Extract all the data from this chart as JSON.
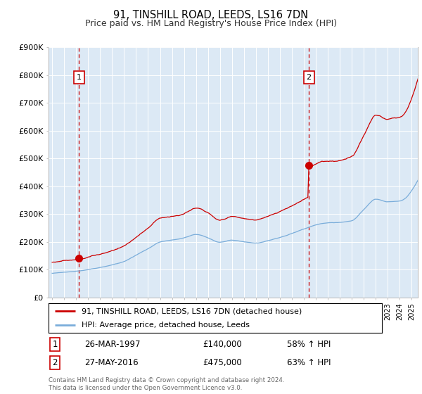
{
  "title": "91, TINSHILL ROAD, LEEDS, LS16 7DN",
  "subtitle": "Price paid vs. HM Land Registry's House Price Index (HPI)",
  "ylim": [
    0,
    900000
  ],
  "yticks": [
    0,
    100000,
    200000,
    300000,
    400000,
    500000,
    600000,
    700000,
    800000,
    900000
  ],
  "ytick_labels": [
    "£0",
    "£100K",
    "£200K",
    "£300K",
    "£400K",
    "£500K",
    "£600K",
    "£700K",
    "£800K",
    "£900K"
  ],
  "xlim_start": 1995.0,
  "xlim_end": 2025.5,
  "sale1_date": 1997.23,
  "sale1_price": 140000,
  "sale1_label": "1",
  "sale1_date_str": "26-MAR-1997",
  "sale1_price_str": "£140,000",
  "sale1_hpi_str": "58% ↑ HPI",
  "sale2_date": 2016.41,
  "sale2_price": 475000,
  "sale2_label": "2",
  "sale2_date_str": "27-MAY-2016",
  "sale2_price_str": "£475,000",
  "sale2_hpi_str": "63% ↑ HPI",
  "legend_line1": "91, TINSHILL ROAD, LEEDS, LS16 7DN (detached house)",
  "legend_line2": "HPI: Average price, detached house, Leeds",
  "copyright": "Contains HM Land Registry data © Crown copyright and database right 2024.\nThis data is licensed under the Open Government Licence v3.0.",
  "property_color": "#cc0000",
  "hpi_color": "#7aadda",
  "background_color": "#dce9f5",
  "grid_color": "#ffffff",
  "vline_color": "#cc0000"
}
